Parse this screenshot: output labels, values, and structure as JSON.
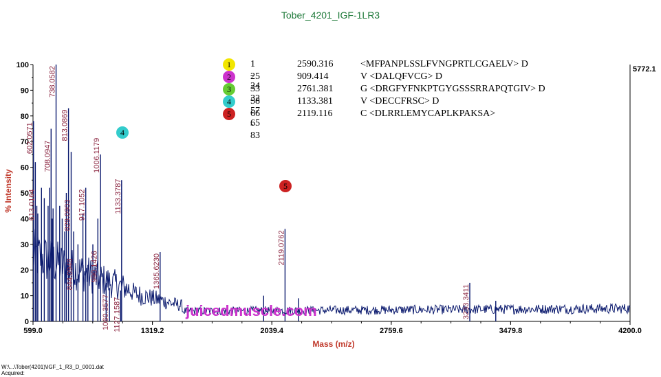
{
  "chart_data": {
    "type": "line",
    "title": "Tober_4201_IGF-1LR3",
    "xlabel": "Mass (m/z)",
    "ylabel": "% Intensity",
    "xlim": [
      599.0,
      4200.0
    ],
    "ylim": [
      0,
      100
    ],
    "x_ticks": [
      "599.0",
      "1319.2",
      "2039.4",
      "2759.6",
      "3479.8",
      "4200.0"
    ],
    "y_ticks": [
      "0",
      "10",
      "20",
      "30",
      "40",
      "50",
      "60",
      "70",
      "80",
      "90",
      "100"
    ],
    "max_intensity": "5772.1",
    "grid": false,
    "peaks": [
      {
        "x": 602.0571,
        "y": 78,
        "label": "602.0571"
      },
      {
        "x": 613.0164,
        "y": 62,
        "label": "613.0164"
      },
      {
        "x": 622.0,
        "y": 45,
        "label": "622.0"
      },
      {
        "x": 628.0,
        "y": 42,
        "label": "628.0"
      },
      {
        "x": 650.0,
        "y": 52,
        "label": "650.0"
      },
      {
        "x": 667.0,
        "y": 48,
        "label": "667.0"
      },
      {
        "x": 690.0,
        "y": 45,
        "label": "690.0"
      },
      {
        "x": 698.0,
        "y": 52,
        "label": "698.0"
      },
      {
        "x": 708.0947,
        "y": 75,
        "label": "708.0947"
      },
      {
        "x": 715.0,
        "y": 40,
        "label": "715.0"
      },
      {
        "x": 720.0,
        "y": 44,
        "label": "720.0"
      },
      {
        "x": 738.0582,
        "y": 100,
        "label": "738.0582"
      },
      {
        "x": 760.0,
        "y": 45,
        "label": "760.0"
      },
      {
        "x": 775.0,
        "y": 40,
        "label": "775.0"
      },
      {
        "x": 790.0,
        "y": 35,
        "label": "790.0"
      },
      {
        "x": 800.0,
        "y": 50,
        "label": "800.0"
      },
      {
        "x": 813.0869,
        "y": 83,
        "label": "813.0869"
      },
      {
        "x": 829.0903,
        "y": 66,
        "label": "829.0903"
      },
      {
        "x": 844.0948,
        "y": 35,
        "label": "844.0948"
      },
      {
        "x": 870.0,
        "y": 30,
        "label": "870.0"
      },
      {
        "x": 900.0,
        "y": 42,
        "label": "900.0"
      },
      {
        "x": 917.1052,
        "y": 52,
        "label": "917.1052"
      },
      {
        "x": 930.0,
        "y": 22,
        "label": "930.0"
      },
      {
        "x": 960.0,
        "y": 30,
        "label": "960.0"
      },
      {
        "x": 990.1426,
        "y": 40,
        "label": "990.1426"
      },
      {
        "x": 1006.1179,
        "y": 65,
        "label": "1006.1179"
      },
      {
        "x": 1040.0,
        "y": 15,
        "label": "1040.0"
      },
      {
        "x": 1060.3577,
        "y": 13,
        "label": "1060.3577"
      },
      {
        "x": 1127.1587,
        "y": 12,
        "label": "1127.1587"
      },
      {
        "x": 1133.3787,
        "y": 55,
        "label": "1133.3787"
      },
      {
        "x": 1365.623,
        "y": 27,
        "label": "1365.6230"
      },
      {
        "x": 1990.0,
        "y": 10,
        "label": "1990.0"
      },
      {
        "x": 2119.0762,
        "y": 36,
        "label": "2119.0762"
      },
      {
        "x": 2200.0,
        "y": 9,
        "label": "2200.0"
      },
      {
        "x": 3233.3411,
        "y": 15,
        "label": "3233.3411"
      },
      {
        "x": 3390.0,
        "y": 8,
        "label": "3390.0"
      }
    ],
    "peak_labels": [
      {
        "text": "602.0571",
        "x": 602.0571,
        "y": 78
      },
      {
        "text": "613.0164",
        "x": 613.0164,
        "y": 52
      },
      {
        "text": "708.0947",
        "x": 708.0947,
        "y": 71
      },
      {
        "text": "738.0582",
        "x": 738.0582,
        "y": 100
      },
      {
        "text": "813.0869",
        "x": 813.0869,
        "y": 83
      },
      {
        "text": "829.0903",
        "x": 829.0903,
        "y": 48
      },
      {
        "text": "844.0948",
        "x": 844.0948,
        "y": 25
      },
      {
        "text": "917.1052",
        "x": 917.1052,
        "y": 52
      },
      {
        "text": "990.1426",
        "x": 990.1426,
        "y": 28
      },
      {
        "text": "1006.1179",
        "x": 1006.1179,
        "y": 72
      },
      {
        "text": "1060.3577",
        "x": 1060.3577,
        "y": 11
      },
      {
        "text": "1127.1587",
        "x": 1127.1587,
        "y": 10
      },
      {
        "text": "1133.3787",
        "x": 1133.3787,
        "y": 56
      },
      {
        "text": "1365.6230",
        "x": 1365.623,
        "y": 27
      },
      {
        "text": "2119.0762",
        "x": 2119.0762,
        "y": 36
      },
      {
        "text": "3233.3411",
        "x": 3233.3411,
        "y": 15
      }
    ]
  },
  "legend": [
    {
      "num": "1",
      "color": "#f2e600",
      "range": "1 - 24",
      "mass": "2590.316",
      "seq": "<MFPANPLSSLFVNGPRTLCGAELV> D"
    },
    {
      "num": "2",
      "color": "#cc33cc",
      "range": "25 - 32",
      "mass": "909.414",
      "seq": "V <DALQFVCG> D"
    },
    {
      "num": "3",
      "color": "#66cc33",
      "range": "33 - 57",
      "mass": "2761.381",
      "seq": "G <DRGFYFNKPTGYGSSSRRAPQTGIV> D"
    },
    {
      "num": "4",
      "color": "#33cccc",
      "range": "58 - 65",
      "mass": "1133.381",
      "seq": "V <DECCFRSC> D"
    },
    {
      "num": "5",
      "color": "#cc2222",
      "range": "66 - 83",
      "mass": "2119.116",
      "seq": "C <DLRRLEMYCAPLKPAKSA>"
    }
  ],
  "markers": [
    {
      "num": "4",
      "color": "#33cccc"
    },
    {
      "num": "5",
      "color": "#cc2222"
    }
  ],
  "watermark": "juicedmuscle.com",
  "file_line1": "W:\\...\\Tober(4201)\\IGF_1_R3_D_0001.dat",
  "file_line2": "Acquired:"
}
